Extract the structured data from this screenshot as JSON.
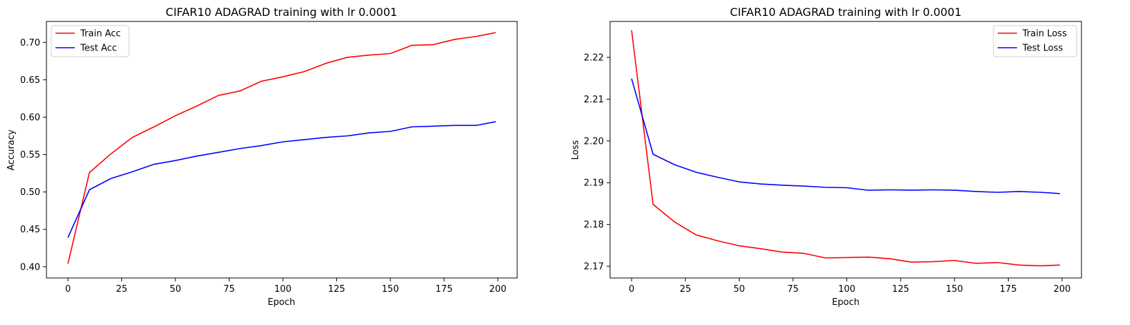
{
  "chart_data": [
    {
      "type": "line",
      "title": "CIFAR10 ADAGRAD training with lr 0.0001",
      "xlabel": "Epoch",
      "ylabel": "Accuracy",
      "xlim": [
        -10,
        209
      ],
      "ylim": [
        0.385,
        0.728
      ],
      "xticks": [
        0,
        25,
        50,
        75,
        100,
        125,
        150,
        175,
        200
      ],
      "xtick_labels": [
        "0",
        "25",
        "50",
        "75",
        "100",
        "125",
        "150",
        "175",
        "200"
      ],
      "yticks": [
        0.4,
        0.45,
        0.5,
        0.55,
        0.6,
        0.65,
        0.7
      ],
      "ytick_labels": [
        "0.40",
        "0.45",
        "0.50",
        "0.55",
        "0.60",
        "0.65",
        "0.70"
      ],
      "grid": false,
      "legend_position": "upper-left",
      "x": [
        0,
        10,
        20,
        30,
        40,
        50,
        60,
        70,
        80,
        90,
        100,
        110,
        120,
        130,
        140,
        150,
        160,
        170,
        180,
        190,
        199
      ],
      "series": [
        {
          "name": "Train Acc",
          "color": "#ff0000",
          "values": [
            0.404,
            0.526,
            0.551,
            0.573,
            0.587,
            0.602,
            0.615,
            0.629,
            0.635,
            0.648,
            0.654,
            0.661,
            0.672,
            0.68,
            0.683,
            0.685,
            0.696,
            0.697,
            0.704,
            0.708,
            0.713
          ]
        },
        {
          "name": "Test Acc",
          "color": "#0000ff",
          "values": [
            0.439,
            0.503,
            0.518,
            0.527,
            0.537,
            0.542,
            0.548,
            0.553,
            0.558,
            0.562,
            0.567,
            0.57,
            0.573,
            0.575,
            0.579,
            0.581,
            0.587,
            0.588,
            0.589,
            0.589,
            0.594
          ]
        }
      ]
    },
    {
      "type": "line",
      "title": "CIFAR10 ADAGRAD training with lr 0.0001",
      "xlabel": "Epoch",
      "ylabel": "Loss",
      "xlim": [
        -10,
        209
      ],
      "ylim": [
        2.1672,
        2.2286
      ],
      "xticks": [
        0,
        25,
        50,
        75,
        100,
        125,
        150,
        175,
        200
      ],
      "xtick_labels": [
        "0",
        "25",
        "50",
        "75",
        "100",
        "125",
        "150",
        "175",
        "200"
      ],
      "yticks": [
        2.17,
        2.18,
        2.19,
        2.2,
        2.21,
        2.22
      ],
      "ytick_labels": [
        "2.17",
        "2.18",
        "2.19",
        "2.20",
        "2.21",
        "2.22"
      ],
      "grid": false,
      "legend_position": "upper-right",
      "x": [
        0,
        10,
        20,
        30,
        40,
        50,
        60,
        70,
        80,
        90,
        100,
        110,
        120,
        130,
        140,
        150,
        160,
        170,
        180,
        190,
        199
      ],
      "series": [
        {
          "name": "Train Loss",
          "color": "#ff0000",
          "values": [
            2.2265,
            2.1848,
            2.1806,
            2.1775,
            2.1761,
            2.1749,
            2.1742,
            2.1734,
            2.1731,
            2.172,
            2.1721,
            2.1722,
            2.1718,
            2.171,
            2.1711,
            2.1714,
            2.1707,
            2.1709,
            2.1703,
            2.1701,
            2.1703
          ]
        },
        {
          "name": "Test Loss",
          "color": "#0000ff",
          "values": [
            2.2149,
            2.1968,
            2.1943,
            2.1925,
            2.1913,
            2.1902,
            2.1897,
            2.1894,
            2.1892,
            2.1889,
            2.1888,
            2.1882,
            2.1883,
            2.1882,
            2.1883,
            2.1882,
            2.1879,
            2.1877,
            2.1879,
            2.1877,
            2.1874
          ]
        }
      ]
    }
  ]
}
